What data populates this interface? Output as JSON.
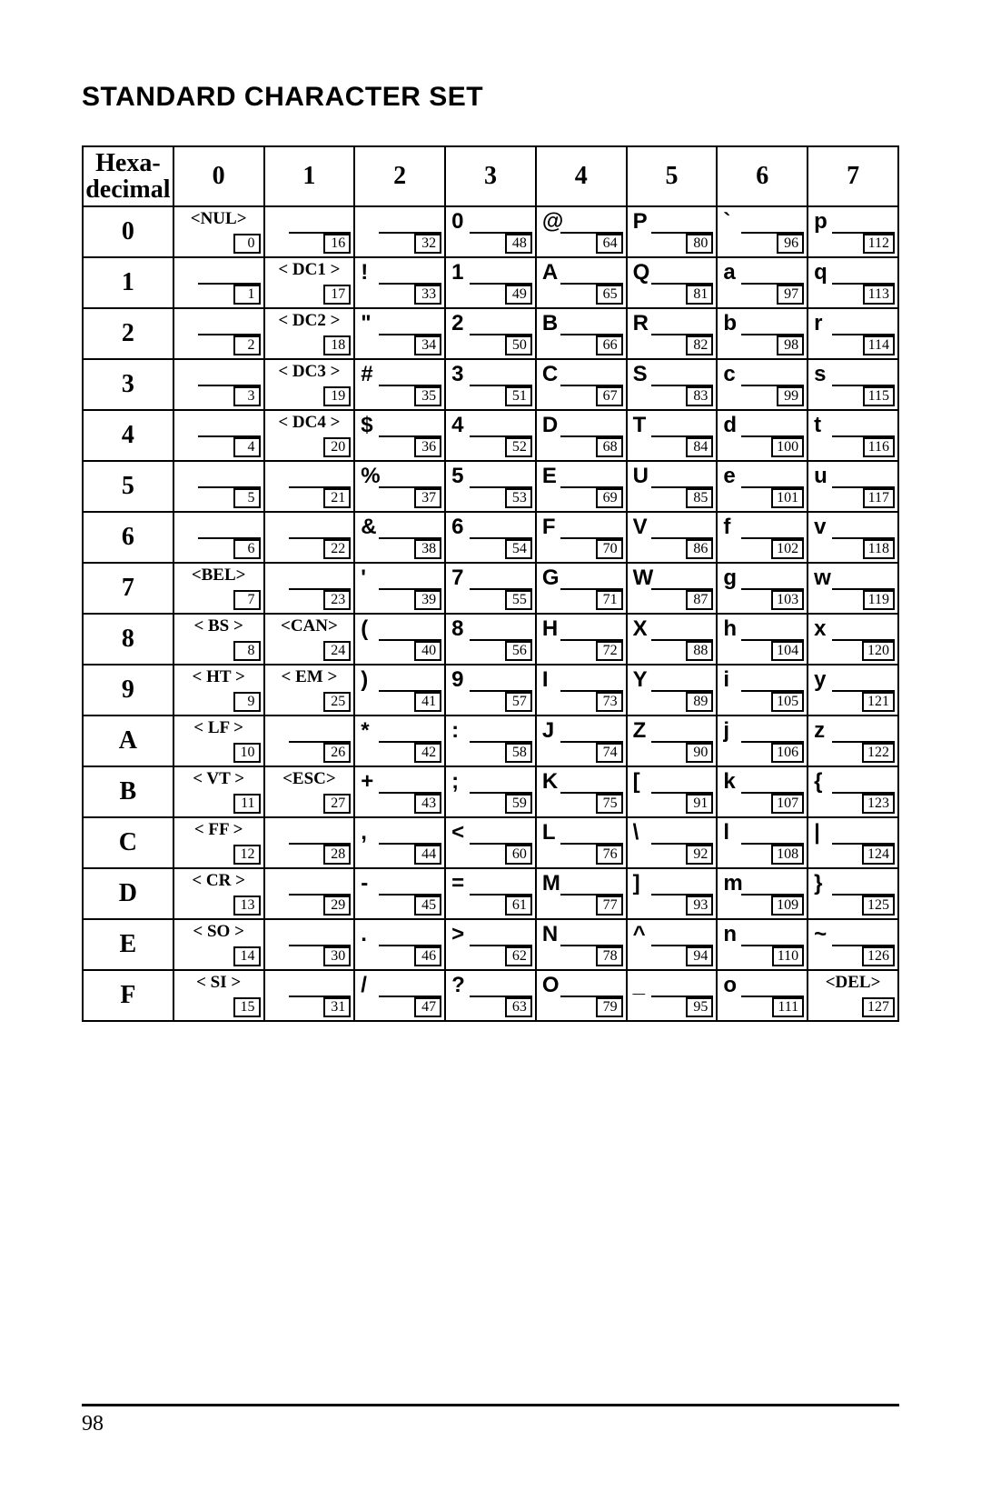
{
  "title": "STANDARD CHARACTER SET",
  "corner_label_line1": "Hexa-",
  "corner_label_line2": "decimal",
  "col_headers": [
    "0",
    "1",
    "2",
    "3",
    "4",
    "5",
    "6",
    "7"
  ],
  "row_headers": [
    "0",
    "1",
    "2",
    "3",
    "4",
    "5",
    "6",
    "7",
    "8",
    "9",
    "A",
    "B",
    "C",
    "D",
    "E",
    "F"
  ],
  "page_number": "98",
  "cells": {
    "r0c0": {
      "glyph": "<NUL>",
      "dec": "0",
      "ctrl": true
    },
    "r0c1": {
      "glyph": "",
      "dec": "16"
    },
    "r0c2": {
      "glyph": "",
      "dec": "32"
    },
    "r0c3": {
      "glyph": "0",
      "dec": "48"
    },
    "r0c4": {
      "glyph": "@",
      "dec": "64"
    },
    "r0c5": {
      "glyph": "P",
      "dec": "80"
    },
    "r0c6": {
      "glyph": "`",
      "dec": "96"
    },
    "r0c7": {
      "glyph": "p",
      "dec": "112"
    },
    "r1c0": {
      "glyph": "",
      "dec": "1"
    },
    "r1c1": {
      "glyph": "< DC1 >",
      "dec": "17",
      "ctrl": true
    },
    "r1c2": {
      "glyph": "!",
      "dec": "33"
    },
    "r1c3": {
      "glyph": "1",
      "dec": "49"
    },
    "r1c4": {
      "glyph": "A",
      "dec": "65"
    },
    "r1c5": {
      "glyph": "Q",
      "dec": "81"
    },
    "r1c6": {
      "glyph": "a",
      "dec": "97"
    },
    "r1c7": {
      "glyph": "q",
      "dec": "113"
    },
    "r2c0": {
      "glyph": "",
      "dec": "2"
    },
    "r2c1": {
      "glyph": "< DC2 >",
      "dec": "18",
      "ctrl": true
    },
    "r2c2": {
      "glyph": "\"",
      "dec": "34"
    },
    "r2c3": {
      "glyph": "2",
      "dec": "50"
    },
    "r2c4": {
      "glyph": "B",
      "dec": "66"
    },
    "r2c5": {
      "glyph": "R",
      "dec": "82"
    },
    "r2c6": {
      "glyph": "b",
      "dec": "98"
    },
    "r2c7": {
      "glyph": "r",
      "dec": "114"
    },
    "r3c0": {
      "glyph": "",
      "dec": "3"
    },
    "r3c1": {
      "glyph": "< DC3 >",
      "dec": "19",
      "ctrl": true
    },
    "r3c2": {
      "glyph": "#",
      "dec": "35"
    },
    "r3c3": {
      "glyph": "3",
      "dec": "51"
    },
    "r3c4": {
      "glyph": "C",
      "dec": "67"
    },
    "r3c5": {
      "glyph": "S",
      "dec": "83"
    },
    "r3c6": {
      "glyph": "c",
      "dec": "99"
    },
    "r3c7": {
      "glyph": "s",
      "dec": "115"
    },
    "r4c0": {
      "glyph": "",
      "dec": "4"
    },
    "r4c1": {
      "glyph": "< DC4 >",
      "dec": "20",
      "ctrl": true
    },
    "r4c2": {
      "glyph": "$",
      "dec": "36"
    },
    "r4c3": {
      "glyph": "4",
      "dec": "52"
    },
    "r4c4": {
      "glyph": "D",
      "dec": "68"
    },
    "r4c5": {
      "glyph": "T",
      "dec": "84"
    },
    "r4c6": {
      "glyph": "d",
      "dec": "100"
    },
    "r4c7": {
      "glyph": "t",
      "dec": "116"
    },
    "r5c0": {
      "glyph": "",
      "dec": "5"
    },
    "r5c1": {
      "glyph": "",
      "dec": "21"
    },
    "r5c2": {
      "glyph": "%",
      "dec": "37"
    },
    "r5c3": {
      "glyph": "5",
      "dec": "53"
    },
    "r5c4": {
      "glyph": "E",
      "dec": "69"
    },
    "r5c5": {
      "glyph": "U",
      "dec": "85"
    },
    "r5c6": {
      "glyph": "e",
      "dec": "101"
    },
    "r5c7": {
      "glyph": "u",
      "dec": "117"
    },
    "r6c0": {
      "glyph": "",
      "dec": "6"
    },
    "r6c1": {
      "glyph": "",
      "dec": "22"
    },
    "r6c2": {
      "glyph": "&",
      "dec": "38"
    },
    "r6c3": {
      "glyph": "6",
      "dec": "54"
    },
    "r6c4": {
      "glyph": "F",
      "dec": "70"
    },
    "r6c5": {
      "glyph": "V",
      "dec": "86"
    },
    "r6c6": {
      "glyph": "f",
      "dec": "102"
    },
    "r6c7": {
      "glyph": "v",
      "dec": "118"
    },
    "r7c0": {
      "glyph": "<BEL>",
      "dec": "7",
      "ctrl": true
    },
    "r7c1": {
      "glyph": "",
      "dec": "23"
    },
    "r7c2": {
      "glyph": "'",
      "dec": "39"
    },
    "r7c3": {
      "glyph": "7",
      "dec": "55"
    },
    "r7c4": {
      "glyph": "G",
      "dec": "71"
    },
    "r7c5": {
      "glyph": "W",
      "dec": "87"
    },
    "r7c6": {
      "glyph": "g",
      "dec": "103"
    },
    "r7c7": {
      "glyph": "w",
      "dec": "119"
    },
    "r8c0": {
      "glyph": "< BS >",
      "dec": "8",
      "ctrl": true
    },
    "r8c1": {
      "glyph": "<CAN>",
      "dec": "24",
      "ctrl": true
    },
    "r8c2": {
      "glyph": "(",
      "dec": "40"
    },
    "r8c3": {
      "glyph": "8",
      "dec": "56"
    },
    "r8c4": {
      "glyph": "H",
      "dec": "72"
    },
    "r8c5": {
      "glyph": "X",
      "dec": "88"
    },
    "r8c6": {
      "glyph": "h",
      "dec": "104"
    },
    "r8c7": {
      "glyph": "x",
      "dec": "120"
    },
    "r9c0": {
      "glyph": "< HT >",
      "dec": "9",
      "ctrl": true
    },
    "r9c1": {
      "glyph": "< EM >",
      "dec": "25",
      "ctrl": true
    },
    "r9c2": {
      "glyph": ")",
      "dec": "41"
    },
    "r9c3": {
      "glyph": "9",
      "dec": "57"
    },
    "r9c4": {
      "glyph": "I",
      "dec": "73"
    },
    "r9c5": {
      "glyph": "Y",
      "dec": "89"
    },
    "r9c6": {
      "glyph": "i",
      "dec": "105"
    },
    "r9c7": {
      "glyph": "y",
      "dec": "121"
    },
    "r10c0": {
      "glyph": "< LF >",
      "dec": "10",
      "ctrl": true
    },
    "r10c1": {
      "glyph": "",
      "dec": "26"
    },
    "r10c2": {
      "glyph": "*",
      "dec": "42"
    },
    "r10c3": {
      "glyph": ":",
      "dec": "58"
    },
    "r10c4": {
      "glyph": "J",
      "dec": "74"
    },
    "r10c5": {
      "glyph": "Z",
      "dec": "90"
    },
    "r10c6": {
      "glyph": "j",
      "dec": "106"
    },
    "r10c7": {
      "glyph": "z",
      "dec": "122"
    },
    "r11c0": {
      "glyph": "< VT >",
      "dec": "11",
      "ctrl": true
    },
    "r11c1": {
      "glyph": "<ESC>",
      "dec": "27",
      "ctrl": true
    },
    "r11c2": {
      "glyph": "+",
      "dec": "43"
    },
    "r11c3": {
      "glyph": ";",
      "dec": "59"
    },
    "r11c4": {
      "glyph": "K",
      "dec": "75"
    },
    "r11c5": {
      "glyph": "[",
      "dec": "91"
    },
    "r11c6": {
      "glyph": "k",
      "dec": "107"
    },
    "r11c7": {
      "glyph": "{",
      "dec": "123"
    },
    "r12c0": {
      "glyph": "< FF >",
      "dec": "12",
      "ctrl": true
    },
    "r12c1": {
      "glyph": "",
      "dec": "28"
    },
    "r12c2": {
      "glyph": ",",
      "dec": "44"
    },
    "r12c3": {
      "glyph": "<",
      "dec": "60"
    },
    "r12c4": {
      "glyph": "L",
      "dec": "76"
    },
    "r12c5": {
      "glyph": "\\",
      "dec": "92"
    },
    "r12c6": {
      "glyph": "l",
      "dec": "108"
    },
    "r12c7": {
      "glyph": "|",
      "dec": "124"
    },
    "r13c0": {
      "glyph": "< CR >",
      "dec": "13",
      "ctrl": true
    },
    "r13c1": {
      "glyph": "",
      "dec": "29"
    },
    "r13c2": {
      "glyph": "-",
      "dec": "45"
    },
    "r13c3": {
      "glyph": "=",
      "dec": "61"
    },
    "r13c4": {
      "glyph": "M",
      "dec": "77"
    },
    "r13c5": {
      "glyph": "]",
      "dec": "93"
    },
    "r13c6": {
      "glyph": "m",
      "dec": "109"
    },
    "r13c7": {
      "glyph": "}",
      "dec": "125"
    },
    "r14c0": {
      "glyph": "< SO >",
      "dec": "14",
      "ctrl": true
    },
    "r14c1": {
      "glyph": "",
      "dec": "30"
    },
    "r14c2": {
      "glyph": ".",
      "dec": "46"
    },
    "r14c3": {
      "glyph": ">",
      "dec": "62"
    },
    "r14c4": {
      "glyph": "N",
      "dec": "78"
    },
    "r14c5": {
      "glyph": "^",
      "dec": "94"
    },
    "r14c6": {
      "glyph": "n",
      "dec": "110"
    },
    "r14c7": {
      "glyph": "~",
      "dec": "126"
    },
    "r15c0": {
      "glyph": "< SI >",
      "dec": "15",
      "ctrl": true
    },
    "r15c1": {
      "glyph": "",
      "dec": "31"
    },
    "r15c2": {
      "glyph": "/",
      "dec": "47"
    },
    "r15c3": {
      "glyph": "?",
      "dec": "63"
    },
    "r15c4": {
      "glyph": "O",
      "dec": "79"
    },
    "r15c5": {
      "glyph": "_",
      "dec": "95"
    },
    "r15c6": {
      "glyph": "o",
      "dec": "111"
    },
    "r15c7": {
      "glyph": "<DEL>",
      "dec": "127",
      "ctrl": true
    }
  }
}
